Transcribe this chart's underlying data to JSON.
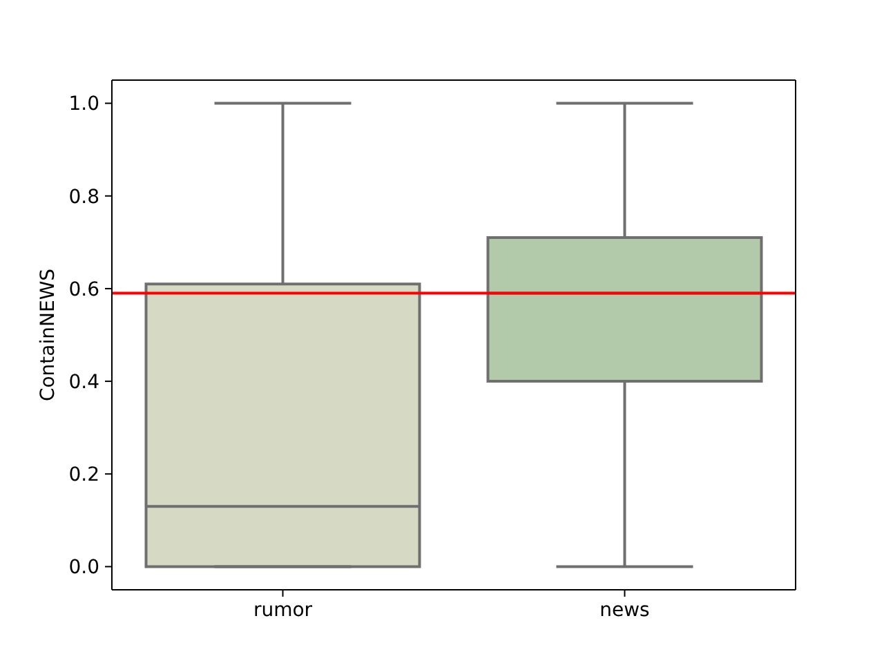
{
  "chart_data": {
    "type": "box",
    "ylabel": "ContainNEWS",
    "categories": [
      "rumor",
      "news"
    ],
    "colors": [
      "#d6dac4",
      "#b2c9aa"
    ],
    "boxes": [
      {
        "low": 0,
        "q1": 0,
        "median": 0.13,
        "q3": 0.61,
        "high": 1
      },
      {
        "low": 0,
        "q1": 0.4,
        "median": 0.59,
        "q3": 0.71,
        "high": 1
      }
    ],
    "ylim": [
      -0.05,
      1.05
    ],
    "yticks": [
      {
        "value": 0,
        "label": "0.0"
      },
      0.2,
      0.4,
      0.6,
      0.8,
      {
        "value": 1,
        "label": "1.0"
      }
    ],
    "ref_lines": [
      {
        "axis": "y",
        "value": 0.59,
        "color": "#ff0000"
      }
    ]
  }
}
